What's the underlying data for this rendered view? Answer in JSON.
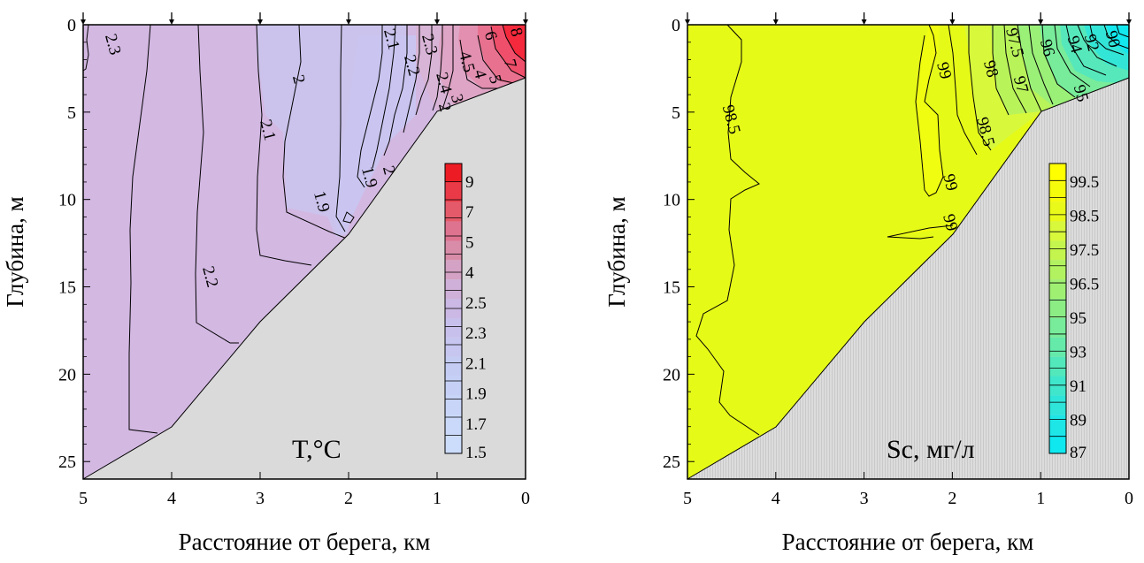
{
  "chart_data": [
    {
      "type": "contour",
      "unit_label": "T,°C",
      "xlabel": "Расстояние от берега, км",
      "ylabel": "Глубина, м",
      "xlim": [
        5,
        0
      ],
      "ylim": [
        26,
        0
      ],
      "x_ticks": [
        "5",
        "4",
        "3",
        "2",
        "1",
        "0"
      ],
      "y_ticks": [
        "0",
        "5",
        "10",
        "15",
        "20",
        "25"
      ],
      "station_x": [
        5,
        4,
        3,
        2,
        1,
        0
      ],
      "bottom_profile": [
        [
          5,
          26
        ],
        [
          4,
          23
        ],
        [
          3,
          17
        ],
        [
          2,
          12
        ],
        [
          1,
          5
        ],
        [
          0,
          3.2
        ]
      ],
      "colorbar": {
        "labels": [
          "9",
          "7",
          "5",
          "4",
          "2.5",
          "2.3",
          "2.1",
          "1.9",
          "1.7",
          "1.5"
        ],
        "levels": [
          1.5,
          1.6,
          1.7,
          1.8,
          1.9,
          2.0,
          2.1,
          2.2,
          2.3,
          2.4,
          2.5,
          3,
          4,
          4.5,
          5,
          6,
          7,
          8,
          9
        ]
      },
      "contour_labels": [
        {
          "text": "2.3",
          "x": 4.72,
          "y": 1.2
        },
        {
          "text": "2",
          "x": 2.62,
          "y": 3.2
        },
        {
          "text": "2.1",
          "x": 2.97,
          "y": 6.1
        },
        {
          "text": "2.2",
          "x": 3.62,
          "y": 14.5
        },
        {
          "text": "1.9",
          "x": 2.36,
          "y": 10.2
        },
        {
          "text": "1.9",
          "x": 1.82,
          "y": 8.8
        },
        {
          "text": "2",
          "x": 1.6,
          "y": 8.4
        },
        {
          "text": "2.1",
          "x": 1.57,
          "y": 0.9
        },
        {
          "text": "2.2",
          "x": 1.34,
          "y": 2.4
        },
        {
          "text": "2.3",
          "x": 1.14,
          "y": 1.2
        },
        {
          "text": "2.4",
          "x": 0.98,
          "y": 3.4
        },
        {
          "text": "2",
          "x": 0.97,
          "y": 4.8
        },
        {
          "text": "3",
          "x": 0.83,
          "y": 4.3
        },
        {
          "text": "4.5",
          "x": 0.72,
          "y": 2.2
        },
        {
          "text": "4",
          "x": 0.57,
          "y": 2.9
        },
        {
          "text": "5",
          "x": 0.4,
          "y": 3.2
        },
        {
          "text": "6",
          "x": 0.45,
          "y": 0.7
        },
        {
          "text": "7",
          "x": 0.23,
          "y": 2.3
        },
        {
          "text": "8",
          "x": 0.16,
          "y": 0.5
        }
      ]
    },
    {
      "type": "contour",
      "unit_label": "Sc, мг/л",
      "xlabel": "Расстояние от берега, км",
      "ylabel": "Глубина, м",
      "xlim": [
        5,
        0
      ],
      "ylim": [
        26,
        0
      ],
      "x_ticks": [
        "5",
        "4",
        "3",
        "2",
        "1",
        "0"
      ],
      "y_ticks": [
        "0",
        "5",
        "10",
        "15",
        "20",
        "25"
      ],
      "station_x": [
        5,
        4,
        3,
        2,
        1,
        0
      ],
      "bottom_profile": [
        [
          5,
          26
        ],
        [
          4,
          23
        ],
        [
          3,
          17
        ],
        [
          2,
          12
        ],
        [
          1,
          5
        ],
        [
          0,
          3.2
        ]
      ],
      "colorbar": {
        "labels": [
          "99.5",
          "98.5",
          "97.5",
          "96.5",
          "95",
          "93",
          "91",
          "89",
          "87"
        ],
        "levels": [
          87,
          88,
          89,
          90,
          91,
          92,
          93,
          94,
          95,
          96,
          96.5,
          97,
          97.5,
          98,
          98.5,
          99,
          99.5
        ]
      },
      "contour_labels": [
        {
          "text": "98.5",
          "x": 4.56,
          "y": 5.5
        },
        {
          "text": "99",
          "x": 2.15,
          "y": 2.7
        },
        {
          "text": "99",
          "x": 2.08,
          "y": 9.1
        },
        {
          "text": "99",
          "x": 2.08,
          "y": 11.4
        },
        {
          "text": "98.5",
          "x": 1.68,
          "y": 6.2
        },
        {
          "text": "98",
          "x": 1.62,
          "y": 2.6
        },
        {
          "text": "97.5",
          "x": 1.35,
          "y": 1.1
        },
        {
          "text": "97",
          "x": 1.28,
          "y": 3.5
        },
        {
          "text": "96",
          "x": 0.98,
          "y": 1.4
        },
        {
          "text": "95",
          "x": 0.6,
          "y": 4.0
        },
        {
          "text": "94",
          "x": 0.67,
          "y": 1.2
        },
        {
          "text": "92",
          "x": 0.48,
          "y": 1.1
        },
        {
          "text": "90",
          "x": 0.24,
          "y": 0.9
        }
      ]
    }
  ]
}
